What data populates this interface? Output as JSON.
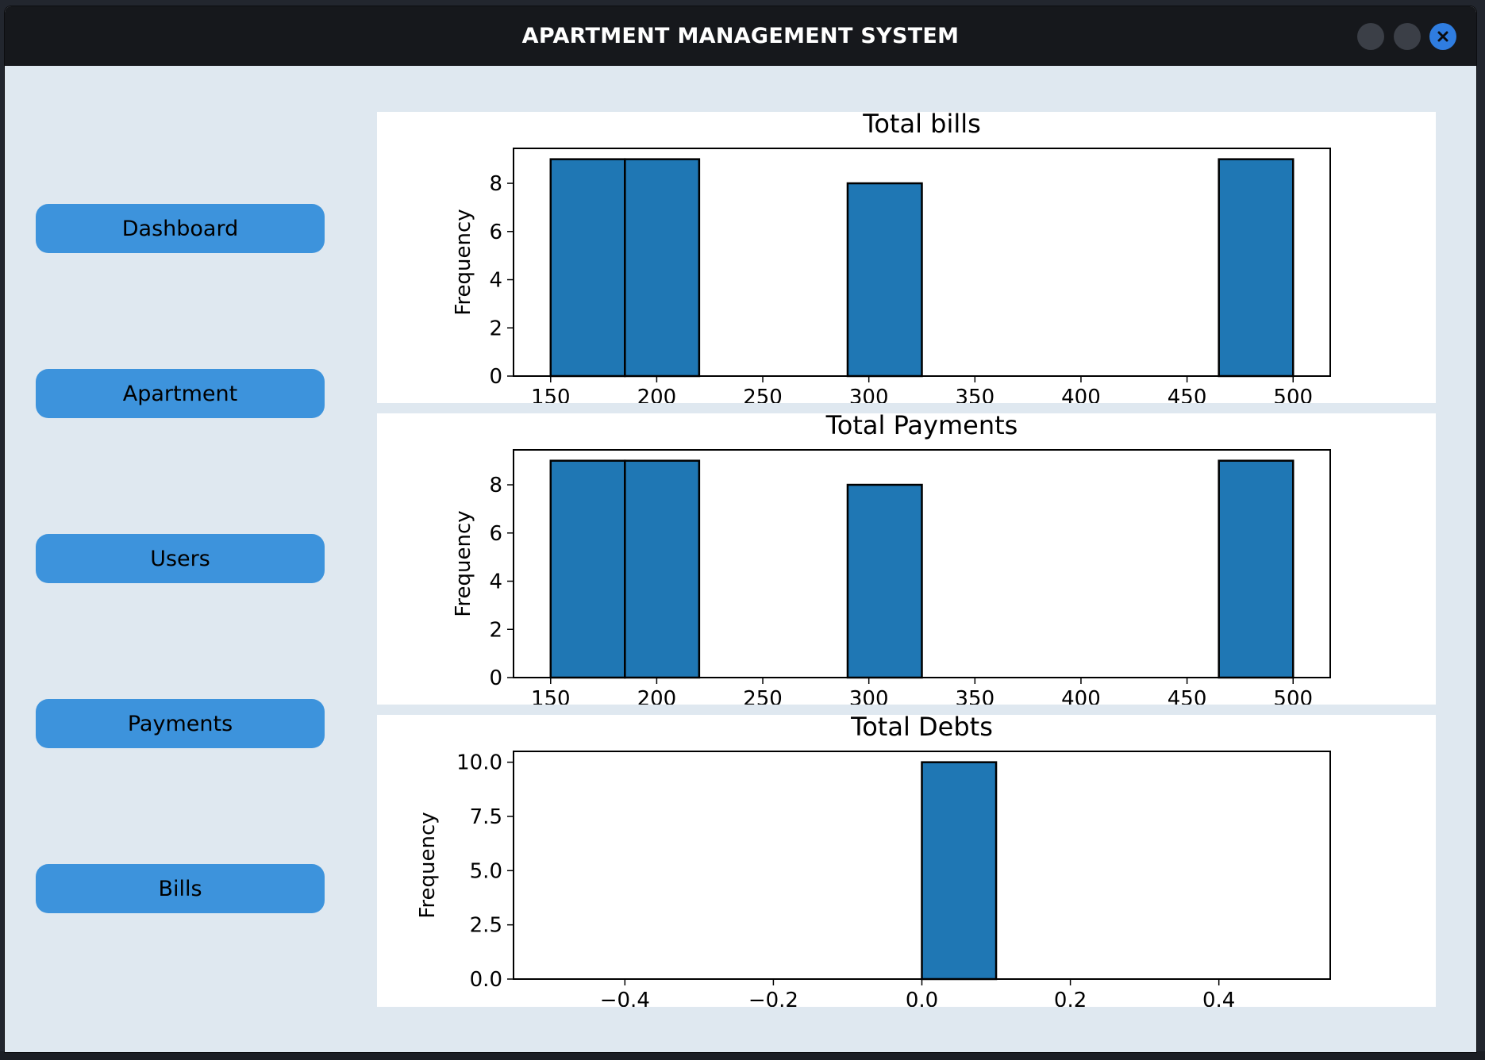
{
  "window": {
    "title": "APARTMENT MANAGEMENT SYSTEM",
    "accent_color": "#2f7de0"
  },
  "sidebar": {
    "items": [
      {
        "label": "Dashboard"
      },
      {
        "label": "Apartment"
      },
      {
        "label": "Users"
      },
      {
        "label": "Payments"
      },
      {
        "label": "Bills"
      }
    ],
    "button_color": "#3d93dc"
  },
  "chart_data": [
    {
      "type": "bar",
      "title": "Total bills",
      "xlabel": "",
      "ylabel": "Frequency",
      "xlim": [
        132.5,
        517.5
      ],
      "ylim": [
        0,
        9.45
      ],
      "xticks": [
        "150",
        "200",
        "250",
        "300",
        "350",
        "400",
        "450",
        "500"
      ],
      "yticks": [
        "0",
        "2",
        "4",
        "6",
        "8"
      ],
      "bins": [
        {
          "x0": 150,
          "x1": 185,
          "value": 9
        },
        {
          "x0": 185,
          "x1": 220,
          "value": 9
        },
        {
          "x0": 290,
          "x1": 325,
          "value": 8
        },
        {
          "x0": 465,
          "x1": 500,
          "value": 9
        }
      ],
      "bar_color": "#1f77b4"
    },
    {
      "type": "bar",
      "title": "Total Payments",
      "xlabel": "",
      "ylabel": "Frequency",
      "xlim": [
        132.5,
        517.5
      ],
      "ylim": [
        0,
        9.45
      ],
      "xticks": [
        "150",
        "200",
        "250",
        "300",
        "350",
        "400",
        "450",
        "500"
      ],
      "yticks": [
        "0",
        "2",
        "4",
        "6",
        "8"
      ],
      "bins": [
        {
          "x0": 150,
          "x1": 185,
          "value": 9
        },
        {
          "x0": 185,
          "x1": 220,
          "value": 9
        },
        {
          "x0": 290,
          "x1": 325,
          "value": 8
        },
        {
          "x0": 465,
          "x1": 500,
          "value": 9
        }
      ],
      "bar_color": "#1f77b4"
    },
    {
      "type": "bar",
      "title": "Total Debts",
      "xlabel": "",
      "ylabel": "Frequency",
      "xlim": [
        -0.55,
        0.55
      ],
      "ylim": [
        0,
        10.5
      ],
      "xticks": [
        "−0.4",
        "−0.2",
        "0.0",
        "0.2",
        "0.4"
      ],
      "yticks": [
        "0.0",
        "2.5",
        "5.0",
        "7.5",
        "10.0"
      ],
      "bins": [
        {
          "x0": 0.0,
          "x1": 0.1,
          "value": 10
        }
      ],
      "bar_color": "#1f77b4"
    }
  ]
}
